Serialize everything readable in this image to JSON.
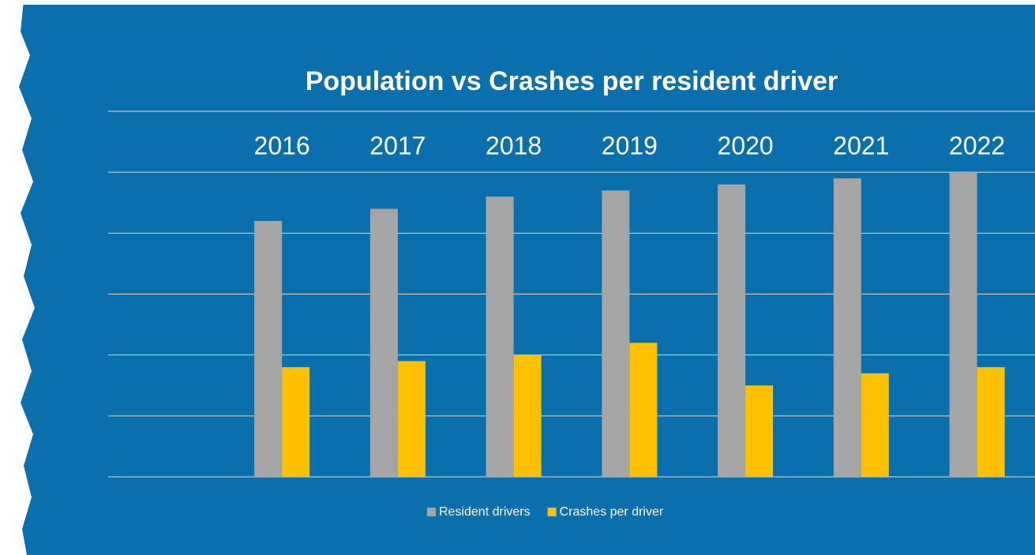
{
  "chart_data": {
    "type": "bar",
    "title": "Population vs Crashes per resident driver",
    "categories": [
      null,
      "2016",
      "2017",
      "2018",
      "2019",
      "2020",
      "2021",
      "2022"
    ],
    "series": [
      {
        "name": "Resident drivers",
        "color": "#a5a5a5",
        "values": [
          null,
          4.2,
          4.4,
          4.6,
          4.7,
          4.8,
          4.9,
          5.0
        ]
      },
      {
        "name": "Crashes per driver",
        "color": "#ffc000",
        "values": [
          null,
          1.8,
          1.9,
          2.0,
          2.2,
          1.5,
          1.7,
          1.8
        ]
      }
    ],
    "ylim": [
      0,
      6
    ],
    "yticks": [
      0,
      1,
      2,
      3,
      4,
      5,
      6
    ],
    "grid": true,
    "legend": "bottom"
  }
}
